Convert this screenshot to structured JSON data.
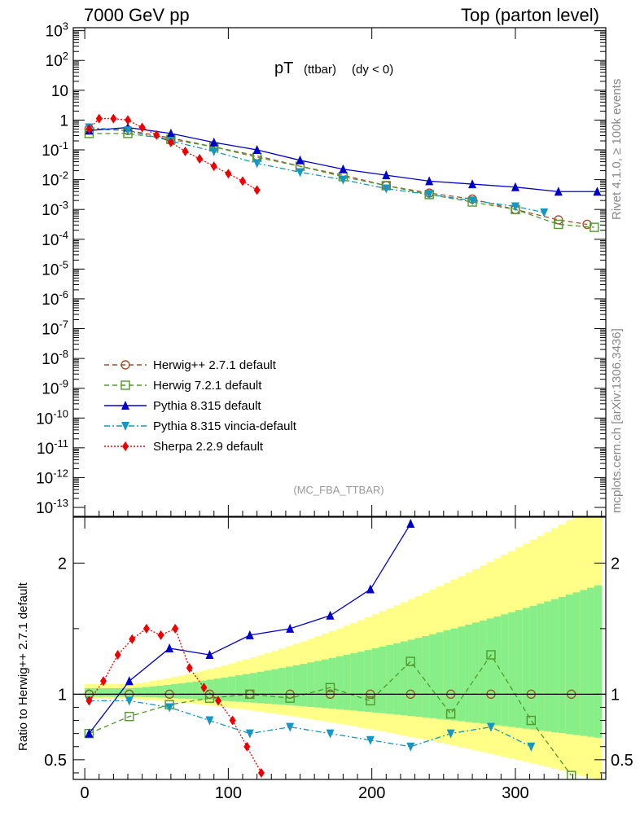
{
  "header": {
    "left": "7000 GeV pp",
    "right": "Top (parton level)"
  },
  "side_labels": {
    "rivet": "Rivet 4.1.0, ≥ 100k events",
    "mcplots": "mcplots.cern.ch [arXiv:1306.3436]"
  },
  "ratio_ylabel": "Ratio to Herwig++ 2.7.1 default",
  "chart_data": {
    "type": "line",
    "title": {
      "main": "pT",
      "small": "(ttbar)",
      "rest": "(dy < 0)"
    },
    "analysis": "(MC_FBA_TTBAR)",
    "xlim": [
      -8,
      363
    ],
    "xticks": [
      0,
      100,
      200,
      300
    ],
    "ylim_log_exp": [
      -13.3,
      3.1
    ],
    "yticks_exp": [
      3,
      2,
      1,
      0,
      -1,
      -2,
      -3,
      -4,
      -5,
      -6,
      -7,
      -8,
      -9,
      -10,
      -11,
      -12,
      -13
    ],
    "ytick_labels": [
      "10^3",
      "10^2",
      "10",
      "1",
      "10^-1",
      "10^-2",
      "10^-3",
      "10^-4",
      "10^-5",
      "10^-6",
      "10^-7",
      "10^-8",
      "10^-9",
      "10^-10",
      "10^-11",
      "10^-12",
      "10^-13"
    ],
    "ratio_ylim": [
      0.35,
      2.35
    ],
    "ratio_ticks": [
      0.5,
      1,
      2
    ],
    "ratio_tick_labels": [
      "0.5",
      "1",
      "2"
    ],
    "series": [
      {
        "name": "Herwig++ 2.7.1 default",
        "color": "#a0522d",
        "marker": "circle-open",
        "dash": "6,4",
        "x": [
          3,
          30,
          60,
          90,
          120,
          150,
          180,
          210,
          240,
          270,
          300,
          330,
          350
        ],
        "y_log": [
          -0.3,
          -0.35,
          -0.6,
          -0.9,
          -1.2,
          -1.55,
          -1.85,
          -2.2,
          -2.45,
          -2.65,
          -3.0,
          -3.35,
          -3.5
        ]
      },
      {
        "name": "Herwig 7.2.1 default",
        "color": "#4f9a2a",
        "marker": "square-open",
        "dash": "6,4",
        "x": [
          3,
          30,
          60,
          90,
          120,
          150,
          180,
          210,
          240,
          270,
          300,
          330,
          355
        ],
        "y_log": [
          -0.45,
          -0.45,
          -0.65,
          -0.9,
          -1.25,
          -1.55,
          -1.9,
          -2.2,
          -2.5,
          -2.75,
          -3.0,
          -3.5,
          -3.6
        ],
        "ratio": [
          0.7,
          0.83,
          0.92,
          0.97,
          1.0,
          0.97,
          1.05,
          0.95,
          1.25,
          0.85,
          1.3,
          0.8,
          0.38
        ]
      },
      {
        "name": "Pythia 8.315 default",
        "color": "#0000cc",
        "marker": "triangle-up",
        "dash": "",
        "x": [
          3,
          30,
          60,
          90,
          120,
          150,
          180,
          210,
          240,
          270,
          300,
          330,
          357
        ],
        "y_log": [
          -0.35,
          -0.25,
          -0.45,
          -0.75,
          -1.0,
          -1.35,
          -1.65,
          -1.85,
          -2.05,
          -2.15,
          -2.25,
          -2.4,
          -2.4
        ],
        "ratio": [
          0.7,
          1.1,
          1.35,
          1.3,
          1.45,
          1.5,
          1.6,
          1.8,
          2.3
        ]
      },
      {
        "name": "Pythia 8.315 vincia-default",
        "color": "#1796c4",
        "marker": "triangle-down",
        "dash": "7,3,2,3",
        "x": [
          3,
          30,
          60,
          90,
          120,
          150,
          180,
          210,
          240,
          270,
          300,
          320
        ],
        "y_log": [
          -0.25,
          -0.35,
          -0.7,
          -1.05,
          -1.45,
          -1.75,
          -2.0,
          -2.3,
          -2.5,
          -2.7,
          -2.9,
          -3.1
        ],
        "ratio": [
          0.95,
          0.95,
          0.9,
          0.8,
          0.7,
          0.75,
          0.7,
          0.65,
          0.6,
          0.7,
          0.75,
          0.6
        ]
      },
      {
        "name": "Sherpa 2.2.9 default",
        "color": "#ee0000",
        "marker": "diamond",
        "dash": "2,2",
        "x": [
          3,
          10,
          20,
          30,
          40,
          50,
          60,
          70,
          80,
          90,
          100,
          110,
          120
        ],
        "y_log": [
          -0.3,
          0.05,
          0.05,
          0.0,
          -0.25,
          -0.5,
          -0.75,
          -1.05,
          -1.3,
          -1.55,
          -1.8,
          -2.05,
          -2.35
        ],
        "ratio": [
          0.95,
          1.1,
          1.3,
          1.42,
          1.5,
          1.45,
          1.5,
          1.2,
          1.05,
          0.95,
          0.8,
          0.6,
          0.4
        ]
      }
    ]
  }
}
